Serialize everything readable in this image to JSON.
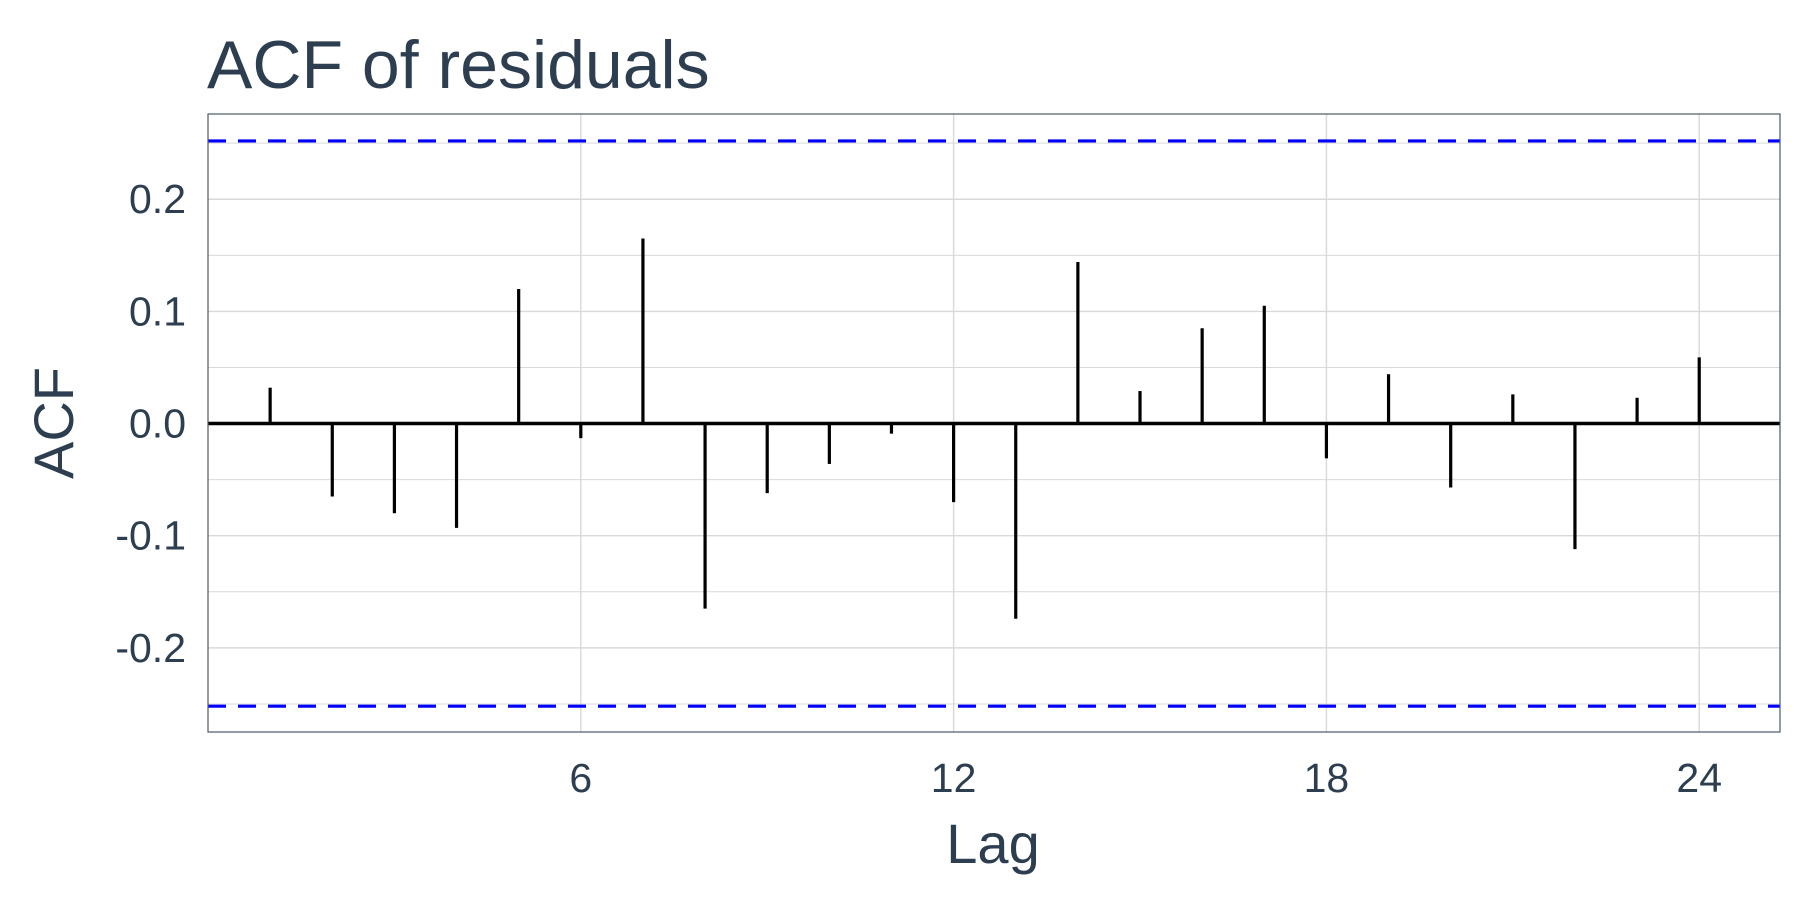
{
  "chart_data": {
    "type": "bar",
    "title": "ACF of residuals",
    "xlabel": "Lag",
    "ylabel": "ACF",
    "x": [
      1,
      2,
      3,
      4,
      5,
      6,
      7,
      8,
      9,
      10,
      11,
      12,
      13,
      14,
      15,
      16,
      17,
      18,
      19,
      20,
      21,
      22,
      23,
      24
    ],
    "values": [
      0.032,
      -0.065,
      -0.08,
      -0.093,
      0.12,
      -0.013,
      0.165,
      -0.165,
      -0.062,
      -0.036,
      -0.009,
      -0.07,
      -0.174,
      0.144,
      0.029,
      0.085,
      0.105,
      -0.031,
      0.044,
      -0.057,
      0.026,
      -0.112,
      0.023,
      0.059
    ],
    "confidence_limits": [
      0.252,
      -0.252
    ],
    "confidence_color": "#0000ff",
    "bar_color": "#000000",
    "xlim": [
      0,
      25.3
    ],
    "ylim": [
      -0.275,
      0.276
    ],
    "xticks": [
      6,
      12,
      18,
      24
    ],
    "xtick_labels": [
      "6",
      "12",
      "18",
      "24"
    ],
    "yticks": [
      -0.2,
      -0.1,
      0.0,
      0.1,
      0.2
    ],
    "ytick_labels": [
      "-0.2",
      "-0.1",
      "0.0",
      "0.1",
      "0.2"
    ],
    "grid": true
  }
}
